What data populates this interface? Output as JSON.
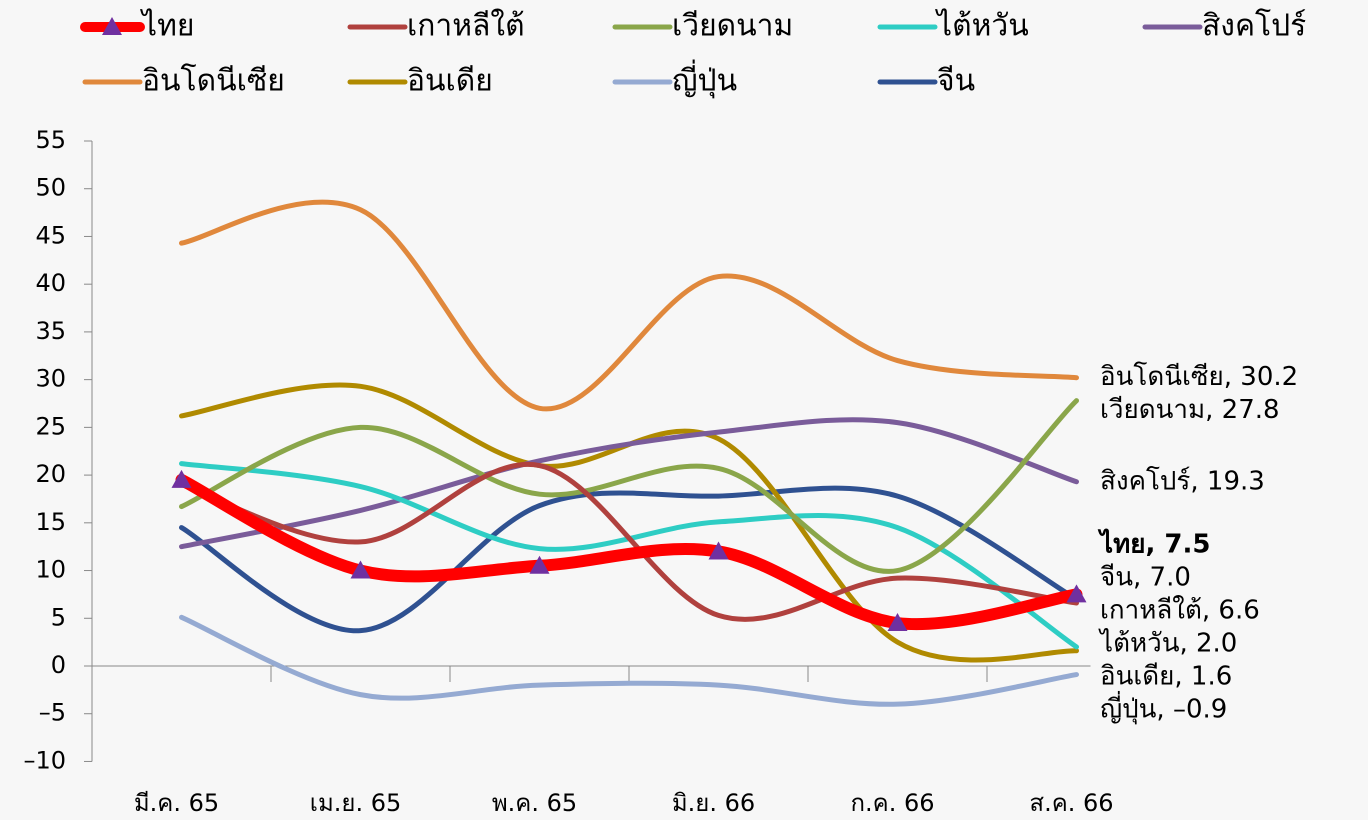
{
  "chart_data": {
    "type": "line",
    "categories": [
      "มี.ค. 65",
      "เม.ย. 65",
      "พ.ค. 65",
      "มิ.ย. 66",
      "ก.ค. 66",
      "ส.ค. 66"
    ],
    "ylim": [
      -10,
      55
    ],
    "yticks": [
      {
        "value": -10,
        "label": "–10"
      },
      {
        "value": -5,
        "label": "–5"
      },
      0,
      5,
      10,
      15,
      20,
      25,
      30,
      35,
      40,
      45,
      50,
      55
    ],
    "series": [
      {
        "name": "ไทย",
        "color": "#ff0000",
        "marker": "triangle",
        "marker_color": "#7030a0",
        "values": [
          19.5,
          10,
          10.5,
          12,
          4.5,
          7.5
        ],
        "value_labels": [
          null,
          null,
          null,
          null,
          null,
          "ไทย, 7.5"
        ]
      },
      {
        "name": "เกาหลีใต้",
        "color": "#b0413e",
        "values": [
          19,
          13,
          21,
          5.3,
          9.2,
          6.6
        ],
        "value_labels": [
          null,
          null,
          null,
          null,
          null,
          "เกาหลีใต้, 6.6"
        ]
      },
      {
        "name": "เวียดนาม",
        "color": "#8aa64a",
        "values": [
          16.7,
          25,
          18,
          20.7,
          10,
          27.8
        ],
        "value_labels": [
          null,
          null,
          null,
          null,
          null,
          "เวียดนาม, 27.8"
        ]
      },
      {
        "name": "ไต้หวัน",
        "color": "#2ecdc4",
        "values": [
          21.2,
          18.8,
          12.3,
          15.1,
          14.5,
          2.0
        ],
        "value_labels": [
          null,
          null,
          null,
          null,
          null,
          "ไต้หวัน, 2.0"
        ]
      },
      {
        "name": "สิงคโปร์",
        "color": "#7a5c9a",
        "values": [
          12.5,
          16.3,
          21.5,
          24.5,
          25.5,
          19.3
        ],
        "value_labels": [
          null,
          null,
          null,
          null,
          null,
          "สิงคโปร์, 19.3"
        ]
      },
      {
        "name": "อินโดนีเซีย",
        "color": "#e0883c",
        "values": [
          44.3,
          47.8,
          27,
          40.8,
          32,
          30.2
        ],
        "value_labels": [
          null,
          null,
          null,
          null,
          null,
          "อินโดนีเซีย, 30.2"
        ]
      },
      {
        "name": "อินเดีย",
        "color": "#b08a00",
        "values": [
          26.2,
          29.3,
          21,
          23.8,
          2.5,
          1.6
        ],
        "value_labels": [
          null,
          null,
          null,
          null,
          null,
          "อินเดีย, 1.6"
        ]
      },
      {
        "name": "ญี่ปุ่น",
        "color": "#95aad2",
        "values": [
          5.1,
          -3,
          -2,
          -2,
          -4,
          -0.9
        ],
        "value_labels": [
          null,
          null,
          null,
          null,
          null,
          "ญี่ปุ่น, –0.9"
        ]
      },
      {
        "name": "จีน",
        "color": "#2f5191",
        "values": [
          14.5,
          3.7,
          16.8,
          17.8,
          17.8,
          7.0
        ],
        "value_labels": [
          null,
          null,
          null,
          null,
          null,
          "จีน, 7.0"
        ]
      }
    ]
  }
}
